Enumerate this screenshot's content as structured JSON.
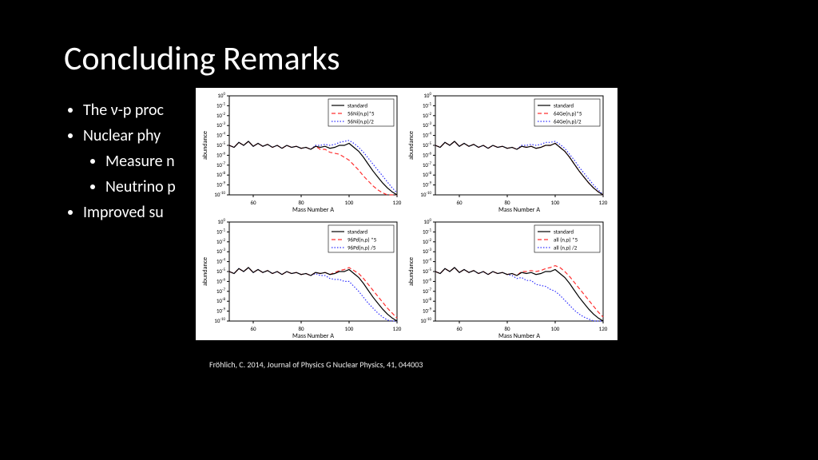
{
  "title": "Concluding Remarks",
  "bullets": {
    "b1": "The ν-p proc",
    "b2": "Nuclear phy",
    "b2a": "Measure n",
    "b2b": "Neutrino p",
    "b3": "Improved su"
  },
  "caption": "Fröhlich, C. 2014, Journal of Physics G Nuclear Physics, 41, 044003",
  "axes": {
    "xlabel": "Mass Number A",
    "ylabel": "abundance",
    "xlim": [
      50,
      120
    ],
    "xticks": [
      60,
      80,
      100,
      120
    ],
    "ylim_exp": [
      -10,
      0
    ],
    "ytick_exps": [
      -10,
      -9,
      -8,
      -7,
      -6,
      -5,
      -4,
      -3,
      -2,
      -1,
      0
    ],
    "grid_color": "#e0e0e0",
    "axis_color": "#000000",
    "tick_fontsize": 7,
    "label_fontsize": 8
  },
  "legend_style": {
    "border_color": "#000000",
    "bg": "#ffffff",
    "fontsize": 7
  },
  "series_colors": {
    "standard": "#000000",
    "red": "#ff3030",
    "blue": "#3030ff"
  },
  "series_styles": {
    "standard": "solid",
    "red": "dash",
    "blue": "dot"
  },
  "line_width": 1.2,
  "panels": [
    {
      "legend": [
        "standard",
        "56Ni(n,p)*5",
        "56Ni(n,p)/2"
      ],
      "x": [
        50,
        52,
        54,
        56,
        58,
        60,
        62,
        64,
        66,
        68,
        70,
        72,
        74,
        76,
        78,
        80,
        82,
        84,
        86,
        88,
        90,
        92,
        94,
        96,
        98,
        100,
        102,
        104,
        106,
        108,
        110,
        112,
        114,
        116,
        118,
        120
      ],
      "standard": [
        -5.0,
        -5.2,
        -4.7,
        -5.0,
        -4.6,
        -5.1,
        -4.8,
        -5.1,
        -4.9,
        -5.2,
        -5.0,
        -5.3,
        -5.0,
        -5.2,
        -5.1,
        -5.3,
        -5.2,
        -5.4,
        -5.1,
        -5.2,
        -5.1,
        -5.3,
        -5.2,
        -5.0,
        -5.0,
        -4.8,
        -5.2,
        -5.6,
        -6.2,
        -6.9,
        -7.6,
        -8.2,
        -8.8,
        -9.3,
        -9.7,
        -10.0
      ],
      "red": [
        -5.0,
        -5.2,
        -4.7,
        -5.0,
        -4.6,
        -5.1,
        -4.8,
        -5.1,
        -4.9,
        -5.2,
        -5.0,
        -5.3,
        -5.0,
        -5.2,
        -5.1,
        -5.3,
        -5.2,
        -5.4,
        -5.1,
        -5.4,
        -5.4,
        -5.7,
        -5.8,
        -5.9,
        -6.2,
        -6.5,
        -7.0,
        -7.5,
        -8.1,
        -8.6,
        -9.1,
        -9.5,
        -9.8,
        -10.0,
        -10.0,
        -10.0
      ],
      "blue": [
        -5.0,
        -5.2,
        -4.7,
        -5.0,
        -4.6,
        -5.1,
        -4.8,
        -5.1,
        -4.9,
        -5.2,
        -5.0,
        -5.3,
        -5.0,
        -5.2,
        -5.1,
        -5.3,
        -5.2,
        -5.4,
        -5.0,
        -5.0,
        -4.9,
        -5.0,
        -4.9,
        -4.7,
        -4.6,
        -4.5,
        -4.8,
        -5.2,
        -5.7,
        -6.3,
        -6.9,
        -7.5,
        -8.1,
        -8.7,
        -9.3,
        -9.8
      ]
    },
    {
      "legend": [
        "standard",
        "64Ge(n,p)*5",
        "64Ge(n,p)/2"
      ],
      "x": [
        50,
        52,
        54,
        56,
        58,
        60,
        62,
        64,
        66,
        68,
        70,
        72,
        74,
        76,
        78,
        80,
        82,
        84,
        86,
        88,
        90,
        92,
        94,
        96,
        98,
        100,
        102,
        104,
        106,
        108,
        110,
        112,
        114,
        116,
        118,
        120
      ],
      "standard": [
        -5.0,
        -5.2,
        -4.7,
        -5.0,
        -4.6,
        -5.1,
        -4.8,
        -5.1,
        -4.9,
        -5.2,
        -5.0,
        -5.3,
        -5.0,
        -5.2,
        -5.1,
        -5.3,
        -5.2,
        -5.4,
        -5.1,
        -5.2,
        -5.1,
        -5.3,
        -5.2,
        -5.0,
        -5.0,
        -4.8,
        -5.2,
        -5.6,
        -6.2,
        -6.9,
        -7.6,
        -8.2,
        -8.8,
        -9.3,
        -9.7,
        -10.0
      ],
      "red": [
        -5.0,
        -5.2,
        -4.7,
        -5.0,
        -4.6,
        -5.1,
        -4.8,
        -5.1,
        -4.9,
        -5.2,
        -5.0,
        -5.3,
        -5.0,
        -5.2,
        -5.1,
        -5.3,
        -5.2,
        -5.4,
        -5.1,
        -5.2,
        -5.1,
        -5.3,
        -5.2,
        -5.0,
        -5.0,
        -4.8,
        -5.2,
        -5.6,
        -6.2,
        -6.9,
        -7.6,
        -8.2,
        -8.8,
        -9.3,
        -9.7,
        -10.0
      ],
      "blue": [
        -5.0,
        -5.2,
        -4.7,
        -5.0,
        -4.6,
        -5.1,
        -4.8,
        -5.1,
        -4.9,
        -5.2,
        -5.0,
        -5.3,
        -5.0,
        -5.2,
        -5.1,
        -5.3,
        -5.2,
        -5.4,
        -5.0,
        -5.0,
        -4.9,
        -5.0,
        -4.9,
        -4.7,
        -4.7,
        -4.6,
        -4.9,
        -5.3,
        -5.9,
        -6.5,
        -7.2,
        -7.8,
        -8.4,
        -9.0,
        -9.5,
        -10.0
      ]
    },
    {
      "legend": [
        "standard",
        "96Pd(n,p) *5",
        "96Pd(n,p) /5"
      ],
      "x": [
        50,
        52,
        54,
        56,
        58,
        60,
        62,
        64,
        66,
        68,
        70,
        72,
        74,
        76,
        78,
        80,
        82,
        84,
        86,
        88,
        90,
        92,
        94,
        96,
        98,
        100,
        102,
        104,
        106,
        108,
        110,
        112,
        114,
        116,
        118,
        120
      ],
      "standard": [
        -5.0,
        -5.2,
        -4.7,
        -5.0,
        -4.6,
        -5.1,
        -4.8,
        -5.1,
        -4.9,
        -5.2,
        -5.0,
        -5.3,
        -5.0,
        -5.2,
        -5.1,
        -5.3,
        -5.2,
        -5.4,
        -5.1,
        -5.2,
        -5.1,
        -5.3,
        -5.2,
        -5.0,
        -5.0,
        -4.8,
        -5.2,
        -5.6,
        -6.2,
        -6.9,
        -7.6,
        -8.2,
        -8.8,
        -9.3,
        -9.7,
        -10.0
      ],
      "red": [
        -5.0,
        -5.2,
        -4.7,
        -5.0,
        -4.6,
        -5.1,
        -4.8,
        -5.1,
        -4.9,
        -5.2,
        -5.0,
        -5.3,
        -5.0,
        -5.2,
        -5.1,
        -5.3,
        -5.2,
        -5.4,
        -5.1,
        -5.2,
        -5.1,
        -5.3,
        -5.1,
        -4.9,
        -4.8,
        -4.6,
        -4.9,
        -5.2,
        -5.7,
        -6.3,
        -6.9,
        -7.5,
        -8.1,
        -8.7,
        -9.2,
        -9.7
      ],
      "blue": [
        -5.0,
        -5.2,
        -4.7,
        -5.0,
        -4.6,
        -5.1,
        -4.8,
        -5.1,
        -4.9,
        -5.2,
        -5.0,
        -5.3,
        -5.0,
        -5.2,
        -5.1,
        -5.3,
        -5.2,
        -5.4,
        -5.2,
        -5.4,
        -5.4,
        -5.7,
        -5.8,
        -5.8,
        -6.0,
        -6.0,
        -6.5,
        -7.0,
        -7.6,
        -8.2,
        -8.7,
        -9.2,
        -9.6,
        -9.9,
        -10.0,
        -10.0
      ]
    },
    {
      "legend": [
        "standard",
        "all (n,p) *5",
        "all (n,p) /2"
      ],
      "x": [
        50,
        52,
        54,
        56,
        58,
        60,
        62,
        64,
        66,
        68,
        70,
        72,
        74,
        76,
        78,
        80,
        82,
        84,
        86,
        88,
        90,
        92,
        94,
        96,
        98,
        100,
        102,
        104,
        106,
        108,
        110,
        112,
        114,
        116,
        118,
        120
      ],
      "standard": [
        -5.0,
        -5.2,
        -4.7,
        -5.0,
        -4.6,
        -5.1,
        -4.8,
        -5.1,
        -4.9,
        -5.2,
        -5.0,
        -5.3,
        -5.0,
        -5.2,
        -5.1,
        -5.3,
        -5.2,
        -5.4,
        -5.1,
        -5.2,
        -5.1,
        -5.3,
        -5.2,
        -5.0,
        -5.0,
        -4.8,
        -5.2,
        -5.6,
        -6.2,
        -6.9,
        -7.6,
        -8.2,
        -8.8,
        -9.3,
        -9.7,
        -10.0
      ],
      "red": [
        -5.0,
        -5.2,
        -4.7,
        -5.0,
        -4.6,
        -5.1,
        -4.8,
        -5.1,
        -4.9,
        -5.2,
        -5.0,
        -5.3,
        -5.0,
        -5.2,
        -5.1,
        -5.3,
        -5.2,
        -5.4,
        -5.0,
        -5.0,
        -4.9,
        -5.0,
        -4.9,
        -4.7,
        -4.6,
        -4.4,
        -4.6,
        -5.0,
        -5.5,
        -6.1,
        -6.7,
        -7.3,
        -7.9,
        -8.5,
        -9.1,
        -9.6
      ],
      "blue": [
        -5.0,
        -5.2,
        -4.7,
        -5.0,
        -4.6,
        -5.1,
        -4.8,
        -5.1,
        -4.9,
        -5.2,
        -5.0,
        -5.3,
        -5.0,
        -5.2,
        -5.1,
        -5.3,
        -5.4,
        -5.7,
        -5.6,
        -5.9,
        -5.9,
        -6.3,
        -6.4,
        -6.5,
        -6.8,
        -7.0,
        -7.4,
        -7.9,
        -8.4,
        -8.9,
        -9.3,
        -9.6,
        -9.8,
        -10.0,
        -10.0,
        -10.0
      ]
    }
  ]
}
